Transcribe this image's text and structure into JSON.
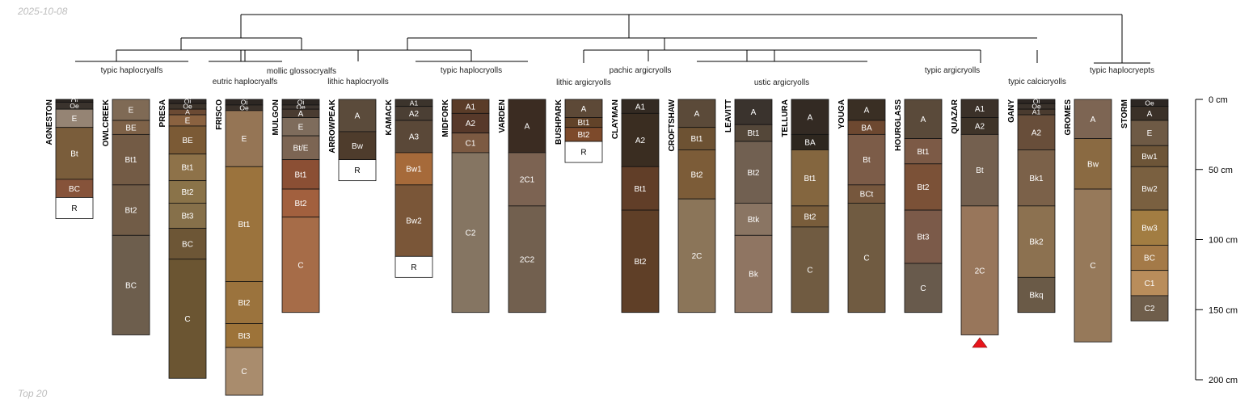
{
  "meta": {
    "date": "2025-10-08",
    "caption": "Top 20"
  },
  "depth_axis": {
    "unit": "cm",
    "ticks": [
      0,
      50,
      100,
      150,
      200
    ]
  },
  "taxa": [
    "typic haplocryalfs",
    "eutric haplocryalfs",
    "mollic glossocryalfs",
    "lithic haplocryolls",
    "typic haplocryolls",
    "lithic argicryolls",
    "pachic argicryolls",
    "ustic argicryolls",
    "typic argicryolls",
    "typic calcicryolls",
    "typic haplocryepts"
  ],
  "profiles": [
    {
      "id": "AGNESTON",
      "horizons": [
        [
          "Oi",
          0,
          2,
          "#2b2622"
        ],
        [
          "Oe",
          2,
          7,
          "#3a332d"
        ],
        [
          "E",
          7,
          20,
          "#958474"
        ],
        [
          "Bt",
          20,
          57,
          "#7a5d3b"
        ],
        [
          "BC",
          57,
          70,
          "#86533a"
        ],
        [
          "R",
          70,
          85,
          "#ffffff"
        ]
      ]
    },
    {
      "id": "OWLCREEK",
      "horizons": [
        [
          "E",
          0,
          15,
          "#7f6a55"
        ],
        [
          "BE",
          15,
          25,
          "#7e6248"
        ],
        [
          "Bt1",
          25,
          61,
          "#735b45"
        ],
        [
          "Bt2",
          61,
          97,
          "#715c47"
        ],
        [
          "BC",
          97,
          168,
          "#6d5e4d"
        ]
      ]
    },
    {
      "id": "PRESA",
      "horizons": [
        [
          "Oi",
          0,
          3,
          "#2d2723"
        ],
        [
          "Oe",
          3,
          7,
          "#3d342b"
        ],
        [
          "A",
          7,
          11,
          "#6b4a33"
        ],
        [
          "E",
          11,
          19,
          "#8a6240"
        ],
        [
          "BE",
          19,
          39,
          "#7b5a35"
        ],
        [
          "Bt1",
          39,
          58,
          "#8e7249"
        ],
        [
          "Bt2",
          58,
          74,
          "#8a7349"
        ],
        [
          "Bt3",
          74,
          92,
          "#86704a"
        ],
        [
          "BC",
          92,
          114,
          "#6d5636"
        ],
        [
          "C",
          114,
          199,
          "#6b5532"
        ]
      ]
    },
    {
      "id": "FRISCO",
      "horizons": [
        [
          "Oi",
          0,
          4,
          "#2d2723"
        ],
        [
          "Oe",
          4,
          8,
          "#3a312a"
        ],
        [
          "E",
          8,
          48,
          "#957555"
        ],
        [
          "Bt1",
          48,
          130,
          "#9b733d"
        ],
        [
          "Bt2",
          130,
          160,
          "#9b733d"
        ],
        [
          "Bt3",
          160,
          177,
          "#9d7339"
        ],
        [
          "C",
          177,
          211,
          "#a98c6d"
        ]
      ]
    },
    {
      "id": "MULGON",
      "horizons": [
        [
          "Oi",
          0,
          4,
          "#2d2723"
        ],
        [
          "Oe",
          4,
          7,
          "#3d352f"
        ],
        [
          "A",
          7,
          13,
          "#4a3c31"
        ],
        [
          "E",
          13,
          26,
          "#7e6c5c"
        ],
        [
          "Bt/E",
          26,
          43,
          "#7c6553"
        ],
        [
          "Bt1",
          43,
          64,
          "#8b4f34"
        ],
        [
          "Bt2",
          64,
          84,
          "#a2603e"
        ],
        [
          "C",
          84,
          152,
          "#a66c48"
        ]
      ]
    },
    {
      "id": "ARROWPEAK",
      "horizons": [
        [
          "A",
          0,
          23,
          "#5b4b3b"
        ],
        [
          "Bw",
          23,
          43,
          "#4e3c2c"
        ],
        [
          "R",
          43,
          58,
          "#ffffff"
        ]
      ]
    },
    {
      "id": "KAMACK",
      "horizons": [
        [
          "A1",
          0,
          5,
          "#3c342c"
        ],
        [
          "A2",
          5,
          15,
          "#4b3f34"
        ],
        [
          "A3",
          15,
          38,
          "#5a4838"
        ],
        [
          "Bw1",
          38,
          61,
          "#a66a3a"
        ],
        [
          "Bw2",
          61,
          112,
          "#7a5638"
        ],
        [
          "R",
          112,
          127,
          "#ffffff"
        ]
      ]
    },
    {
      "id": "MIDFORK",
      "horizons": [
        [
          "A1",
          0,
          10,
          "#5a3c28"
        ],
        [
          "A2",
          10,
          24,
          "#57392a"
        ],
        [
          "C1",
          24,
          38,
          "#7c5a42"
        ],
        [
          "C2",
          38,
          152,
          "#857562"
        ]
      ]
    },
    {
      "id": "VARDEN",
      "horizons": [
        [
          "A",
          0,
          38,
          "#3b2c22"
        ],
        [
          "2C1",
          38,
          76,
          "#7c6352"
        ],
        [
          "2C2",
          76,
          152,
          "#72604f"
        ]
      ]
    },
    {
      "id": "BUSHPARK",
      "horizons": [
        [
          "A",
          0,
          13,
          "#5d4937"
        ],
        [
          "Bt1",
          13,
          20,
          "#624329"
        ],
        [
          "Bt2",
          20,
          30,
          "#7d4a2b"
        ],
        [
          "R",
          30,
          45,
          "#ffffff"
        ]
      ]
    },
    {
      "id": "CLAYMAN",
      "horizons": [
        [
          "A1",
          0,
          10,
          "#332a22"
        ],
        [
          "A2",
          10,
          48,
          "#3a2d21"
        ],
        [
          "Bt1",
          48,
          79,
          "#613e28"
        ],
        [
          "Bt2",
          79,
          152,
          "#5f3f27"
        ]
      ]
    },
    {
      "id": "CROFTSHAW",
      "horizons": [
        [
          "A",
          0,
          20,
          "#5b4a39"
        ],
        [
          "Bt1",
          20,
          36,
          "#6d5233"
        ],
        [
          "Bt2",
          36,
          71,
          "#7c5c38"
        ],
        [
          "2C",
          71,
          152,
          "#8b7559"
        ]
      ]
    },
    {
      "id": "LEAVITT",
      "horizons": [
        [
          "A",
          0,
          18,
          "#3a332d"
        ],
        [
          "Bt1",
          18,
          30,
          "#544739"
        ],
        [
          "Bt2",
          30,
          74,
          "#716051"
        ],
        [
          "Btk",
          74,
          97,
          "#8a7563"
        ],
        [
          "Bk",
          97,
          152,
          "#8f7562"
        ]
      ]
    },
    {
      "id": "TELLURA",
      "horizons": [
        [
          "A",
          0,
          25,
          "#332a23"
        ],
        [
          "BA",
          25,
          36,
          "#2e271f"
        ],
        [
          "Bt1",
          36,
          76,
          "#84663f"
        ],
        [
          "Bt2",
          76,
          91,
          "#795d3b"
        ],
        [
          "C",
          91,
          152,
          "#705b41"
        ]
      ]
    },
    {
      "id": "YOUGA",
      "horizons": [
        [
          "A",
          0,
          15,
          "#3a2f24"
        ],
        [
          "BA",
          15,
          25,
          "#6d4830"
        ],
        [
          "Bt",
          25,
          61,
          "#7c5c48"
        ],
        [
          "BCt",
          61,
          74,
          "#76573d"
        ],
        [
          "C",
          74,
          152,
          "#705b41"
        ]
      ]
    },
    {
      "id": "HOURGLASS",
      "horizons": [
        [
          "A",
          0,
          28,
          "#5a4a3a"
        ],
        [
          "Bt1",
          28,
          46,
          "#7c5a46"
        ],
        [
          "Bt2",
          46,
          79,
          "#7b5137"
        ],
        [
          "Bt3",
          79,
          117,
          "#7b5a49"
        ],
        [
          "C",
          117,
          152,
          "#685a4c"
        ]
      ]
    },
    {
      "id": "QUAZAR",
      "horizons": [
        [
          "A1",
          0,
          13,
          "#3b3129"
        ],
        [
          "A2",
          13,
          25,
          "#3f3429"
        ],
        [
          "Bt",
          25,
          76,
          "#74604f"
        ],
        [
          "2C",
          76,
          168,
          "#98765b"
        ]
      ]
    },
    {
      "id": "GANY",
      "horizons": [
        [
          "Oi",
          0,
          3,
          "#2d2723"
        ],
        [
          "Oe",
          3,
          7,
          "#3a322b"
        ],
        [
          "A1",
          7,
          11,
          "#4a3b2f"
        ],
        [
          "A2",
          11,
          36,
          "#684e3a"
        ],
        [
          "Bk1",
          36,
          76,
          "#7b6149"
        ],
        [
          "Bk2",
          76,
          127,
          "#8c7150"
        ],
        [
          "Bkq",
          127,
          152,
          "#6a5a47"
        ]
      ]
    },
    {
      "id": "GROMES",
      "horizons": [
        [
          "A",
          0,
          28,
          "#7d6553"
        ],
        [
          "Bw",
          28,
          64,
          "#8a6a42"
        ],
        [
          "C",
          64,
          173,
          "#96795a"
        ]
      ]
    },
    {
      "id": "STORM",
      "horizons": [
        [
          "Oe",
          0,
          5,
          "#2d2723"
        ],
        [
          "A",
          5,
          15,
          "#3b3128"
        ],
        [
          "E",
          15,
          33,
          "#6e5a45"
        ],
        [
          "Bw1",
          33,
          48,
          "#6d5538"
        ],
        [
          "Bw2",
          48,
          79,
          "#7a6040"
        ],
        [
          "Bw3",
          79,
          104,
          "#a27d42"
        ],
        [
          "BC",
          104,
          122,
          "#a47a48"
        ],
        [
          "C1",
          122,
          140,
          "#b98d5b"
        ],
        [
          "C2",
          140,
          158,
          "#6f5e4b"
        ]
      ]
    }
  ]
}
